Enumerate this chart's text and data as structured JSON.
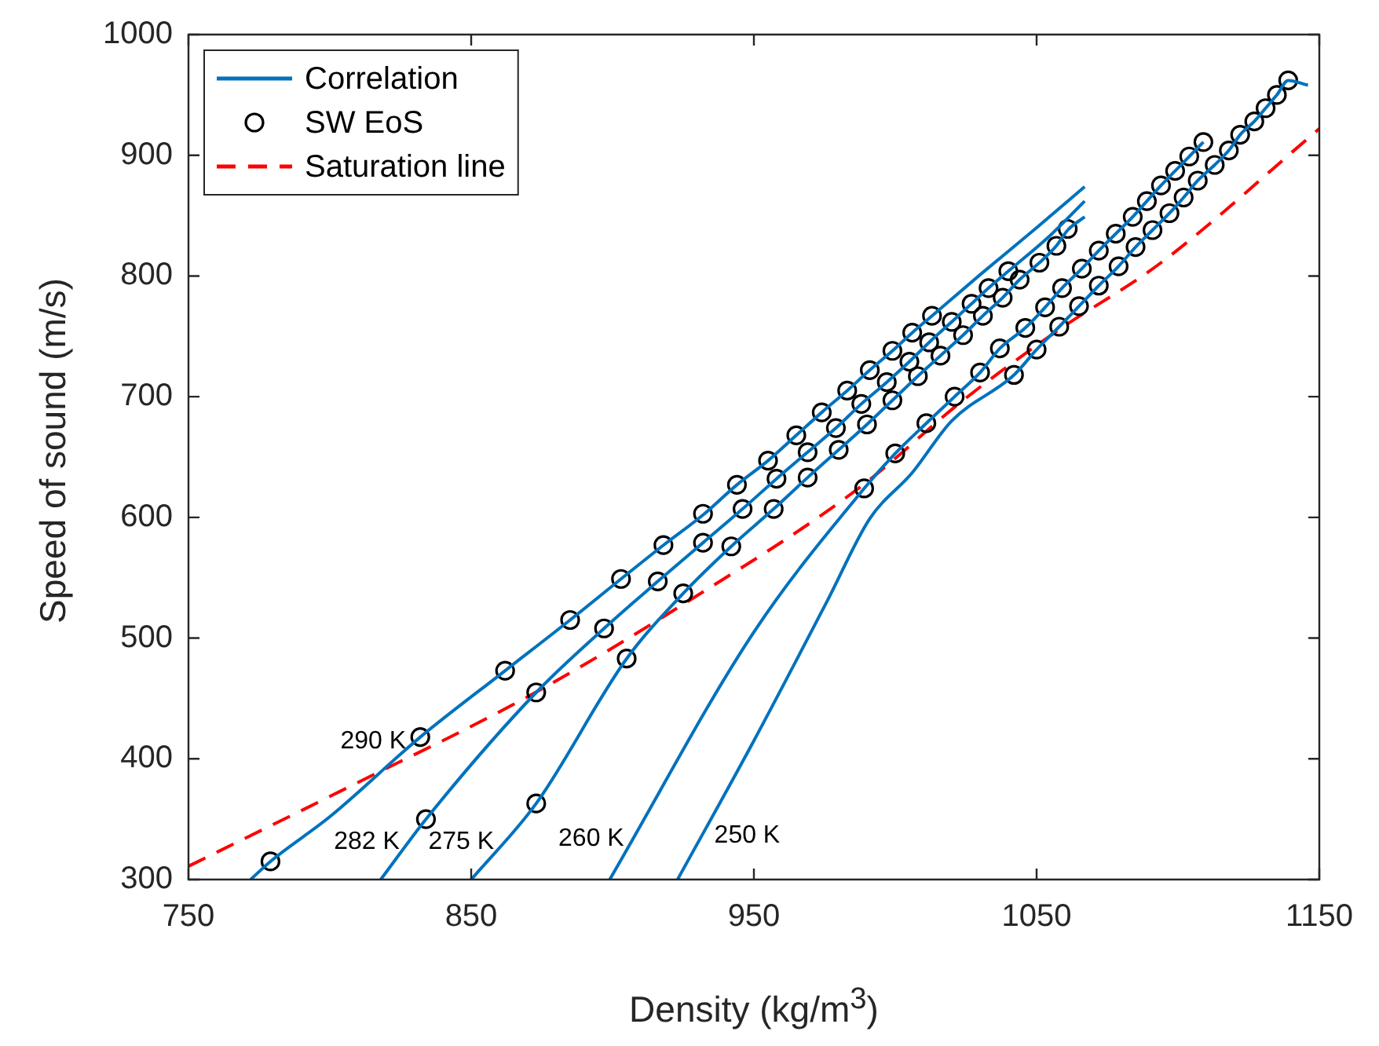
{
  "chart_data": {
    "type": "line",
    "xlabel": "Density (kg/m$^{3}$)",
    "ylabel": "Speed of sound (m/s)",
    "xlim": [
      750,
      1150
    ],
    "ylim": [
      300,
      1000
    ],
    "xticks": [
      750,
      850,
      950,
      1050,
      1150
    ],
    "yticks": [
      300,
      400,
      500,
      600,
      700,
      800,
      900,
      1000
    ],
    "grid": false,
    "legend": "top left",
    "series": [
      {
        "name": "Correlation",
        "type": "line",
        "color": "#0072bd",
        "marker": "none",
        "line_style": "solid",
        "x": [
          772,
          779,
          800,
          832,
          862,
          885,
          903,
          918,
          932,
          944,
          955,
          965,
          974,
          983,
          991,
          999,
          1006,
          1013,
          1030,
          1050,
          1067
        ],
        "values": [
          300,
          315,
          352,
          418,
          473,
          515,
          549,
          577,
          602,
          627,
          647,
          668,
          687,
          705,
          722,
          738,
          753,
          767,
          801,
          840,
          874
        ]
      },
      {
        "type": "line",
        "color": "#0072bd",
        "marker": "none",
        "line_style": "solid",
        "x": [
          818,
          834,
          873,
          897,
          916,
          932,
          946,
          958,
          969,
          979,
          988,
          997,
          1005,
          1012,
          1020,
          1027,
          1033,
          1040,
          1055,
          1067
        ],
        "values": [
          300,
          350,
          455,
          508,
          547,
          579,
          607,
          632,
          654,
          674,
          694,
          712,
          729,
          745,
          762,
          777,
          790,
          804,
          834,
          862
        ]
      },
      {
        "type": "line",
        "color": "#0072bd",
        "marker": "none",
        "line_style": "solid",
        "x": [
          850,
          873,
          905,
          925,
          942,
          957,
          969,
          980,
          990,
          999,
          1008,
          1016,
          1024,
          1031,
          1038,
          1044,
          1051,
          1057,
          1061,
          1067
        ],
        "values": [
          300,
          363,
          483,
          537,
          576,
          607,
          633,
          656,
          677,
          697,
          717,
          734,
          751,
          767,
          782,
          797,
          811,
          825,
          838,
          849
        ]
      },
      {
        "type": "line",
        "color": "#0072bd",
        "marker": "none",
        "line_style": "solid",
        "x": [
          899,
          950,
          989,
          1000,
          1011,
          1021,
          1030,
          1037,
          1046,
          1053,
          1059,
          1066,
          1072,
          1078,
          1084,
          1089,
          1094,
          1099,
          1104,
          1109
        ],
        "values": [
          300,
          505,
          624,
          653,
          678,
          700,
          720,
          740,
          757,
          774,
          790,
          806,
          821,
          835,
          849,
          862,
          875,
          887,
          899,
          911
        ]
      },
      {
        "type": "line",
        "color": "#0072bd",
        "marker": "none",
        "line_style": "solid",
        "x": [
          923,
          950,
          976,
          991,
          1006,
          1020,
          1042,
          1050,
          1058,
          1065,
          1072,
          1079,
          1085,
          1091,
          1097,
          1102,
          1107,
          1113,
          1118,
          1122,
          1127,
          1131,
          1135,
          1139,
          1146
        ],
        "values": [
          300,
          415,
          531,
          599,
          637,
          680,
          718,
          739,
          758,
          775,
          792,
          808,
          824,
          838,
          852,
          865,
          879,
          892,
          904,
          917,
          928,
          939,
          950,
          962,
          958
        ]
      },
      {
        "name": "SW EoS",
        "type": "scatter",
        "color": "#000000",
        "marker": "circle",
        "x": [
          779,
          832,
          834,
          862,
          873,
          873,
          885,
          897,
          905,
          903,
          916,
          925,
          918,
          932,
          932,
          942,
          944,
          946,
          957,
          958,
          969,
          955,
          969,
          980,
          965,
          979,
          990,
          974,
          988,
          999,
          983,
          997,
          1008,
          991,
          1005,
          1016,
          999,
          1012,
          1024,
          1006,
          1020,
          1031,
          1013,
          1027,
          1038,
          1033,
          1044,
          1040,
          1051,
          1057,
          1061,
          989,
          1000,
          1011,
          1021,
          1030,
          1037,
          1046,
          1053,
          1059,
          1042,
          1050,
          1058,
          1066,
          1072,
          1078,
          1084,
          1089,
          1094,
          1099,
          1104,
          1109,
          1065,
          1072,
          1079,
          1085,
          1091,
          1097,
          1102,
          1107,
          1113,
          1118,
          1122,
          1127,
          1131,
          1135,
          1139
        ],
        "values": [
          315,
          418,
          350,
          473,
          455,
          363,
          515,
          508,
          483,
          549,
          547,
          537,
          577,
          579,
          603,
          576,
          627,
          607,
          607,
          632,
          633,
          647,
          654,
          656,
          668,
          674,
          677,
          687,
          694,
          697,
          705,
          712,
          717,
          722,
          729,
          734,
          738,
          745,
          751,
          753,
          762,
          767,
          767,
          777,
          782,
          790,
          797,
          804,
          811,
          825,
          839,
          624,
          653,
          678,
          700,
          720,
          740,
          757,
          774,
          790,
          718,
          739,
          758,
          806,
          821,
          835,
          849,
          862,
          875,
          887,
          899,
          911,
          775,
          792,
          808,
          824,
          838,
          852,
          865,
          879,
          892,
          904,
          917,
          928,
          939,
          950,
          962
        ]
      },
      {
        "name": "Saturation line",
        "type": "line",
        "color": "#ff0000",
        "marker": "none",
        "line_style": "dashed",
        "x": [
          750,
          807,
          872,
          925,
          987,
          1024,
          1057,
          1094,
          1150
        ],
        "values": [
          311,
          377,
          454,
          528,
          624,
          697,
          754,
          811,
          922
        ]
      }
    ],
    "annotations": [
      "290 K",
      "282 K",
      "275 K",
      "260 K",
      "250 K"
    ]
  }
}
